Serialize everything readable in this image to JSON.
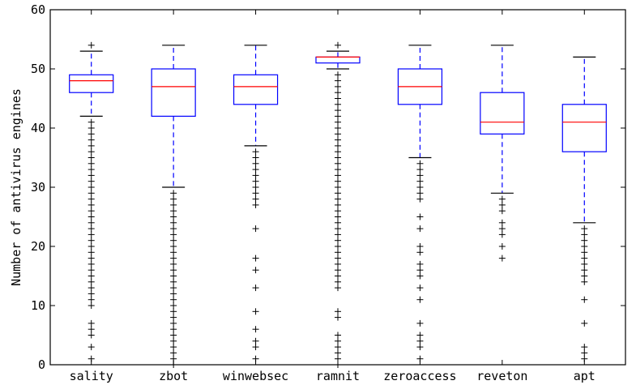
{
  "chart_data": {
    "type": "box",
    "title": "",
    "xlabel": "",
    "ylabel": "Number of antivirus engines",
    "ylim": [
      0,
      60
    ],
    "yticks": [
      0,
      10,
      20,
      30,
      40,
      50,
      60
    ],
    "grid": false,
    "colors": {
      "box": "#0000ff",
      "median": "#ff0000",
      "whisker": "#0000ff",
      "cap": "#000000",
      "flier": "#000000"
    },
    "categories": [
      "sality",
      "zbot",
      "winwebsec",
      "ramnit",
      "zeroaccess",
      "reveton",
      "apt"
    ],
    "boxes": [
      {
        "name": "sality",
        "whislo": 42,
        "q1": 46,
        "med": 48,
        "q3": 49,
        "whishi": 53,
        "fliers": [
          54,
          41,
          40,
          39,
          38,
          37,
          36,
          35,
          34,
          33,
          32,
          31,
          30,
          29,
          28,
          27,
          26,
          25,
          24,
          23,
          22,
          21,
          20,
          19,
          18,
          17,
          16,
          15,
          14,
          13,
          12,
          11,
          10,
          7,
          6,
          5,
          3,
          1
        ]
      },
      {
        "name": "zbot",
        "whislo": 30,
        "q1": 42,
        "med": 47,
        "q3": 50,
        "whishi": 54,
        "fliers": [
          29,
          28,
          27,
          26,
          25,
          24,
          23,
          22,
          21,
          20,
          19,
          18,
          17,
          16,
          15,
          14,
          13,
          12,
          11,
          10,
          9,
          8,
          7,
          6,
          5,
          4,
          3,
          2,
          1,
          0
        ]
      },
      {
        "name": "winwebsec",
        "whislo": 37,
        "q1": 44,
        "med": 47,
        "q3": 49,
        "whishi": 54,
        "fliers": [
          36,
          35,
          34,
          33,
          32,
          31,
          30,
          29,
          28,
          27,
          23,
          18,
          16,
          13,
          9,
          6,
          4,
          3,
          1
        ]
      },
      {
        "name": "ramnit",
        "whislo": 50,
        "q1": 51,
        "med": 52,
        "q3": 52,
        "whishi": 53,
        "fliers": [
          54,
          49,
          48,
          47,
          46,
          45,
          44,
          43,
          42,
          41,
          40,
          39,
          38,
          37,
          36,
          35,
          34,
          33,
          32,
          31,
          30,
          29,
          28,
          27,
          26,
          25,
          24,
          23,
          22,
          21,
          20,
          19,
          18,
          17,
          16,
          15,
          14,
          13,
          9,
          8,
          5,
          4,
          3,
          2,
          1,
          0
        ]
      },
      {
        "name": "zeroaccess",
        "whislo": 35,
        "q1": 44,
        "med": 47,
        "q3": 50,
        "whishi": 54,
        "fliers": [
          34,
          33,
          32,
          31,
          30,
          29,
          28,
          25,
          23,
          20,
          19,
          17,
          16,
          15,
          13,
          11,
          7,
          5,
          4,
          3,
          1
        ]
      },
      {
        "name": "reveton",
        "whislo": 29,
        "q1": 39,
        "med": 41,
        "q3": 46,
        "whishi": 54,
        "fliers": [
          28,
          27,
          26,
          24,
          23,
          22,
          20,
          18
        ]
      },
      {
        "name": "apt",
        "whislo": 24,
        "q1": 36,
        "med": 41,
        "q3": 44,
        "whishi": 52,
        "fliers": [
          23,
          22,
          21,
          20,
          19,
          18,
          17,
          16,
          15,
          14,
          11,
          7,
          3,
          2,
          1
        ]
      }
    ]
  }
}
